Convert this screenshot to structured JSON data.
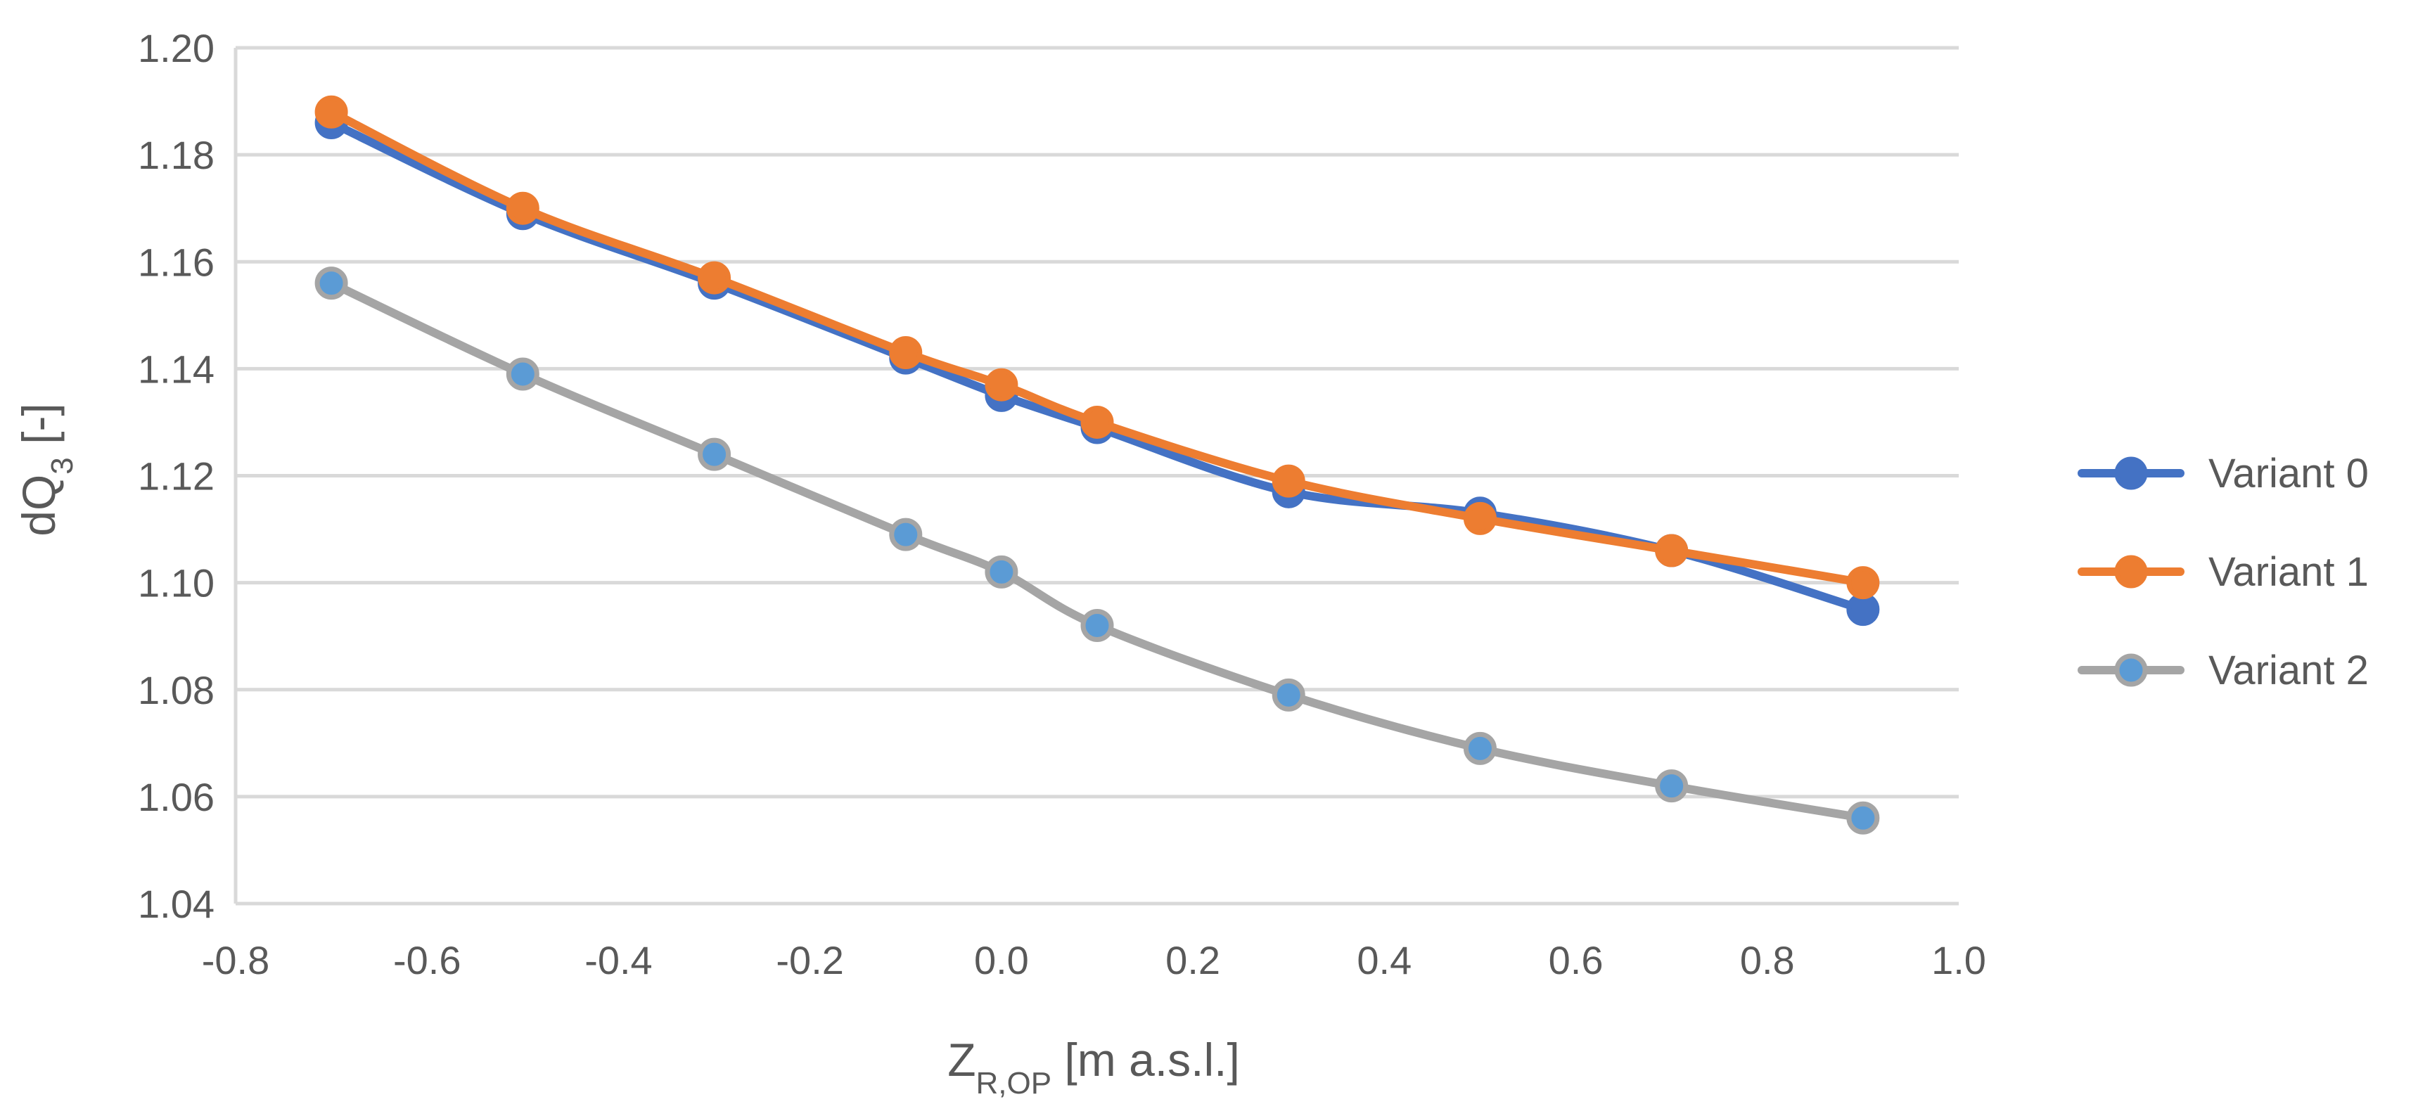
{
  "chart_data": {
    "type": "line",
    "title": "",
    "xlabel": {
      "main": "Z",
      "sub": "R,OP",
      "rest": " [m a.s.l.]"
    },
    "ylabel": {
      "main": "dQ",
      "sub": "3",
      "rest": " [-]"
    },
    "xlim": [
      -0.8,
      1.0
    ],
    "ylim": [
      1.04,
      1.2
    ],
    "x_ticks": [
      "-0.8",
      "-0.6",
      "-0.4",
      "-0.2",
      "0.0",
      "0.2",
      "0.4",
      "0.6",
      "0.8",
      "1.0"
    ],
    "y_ticks": [
      "1.04",
      "1.06",
      "1.08",
      "1.10",
      "1.12",
      "1.14",
      "1.16",
      "1.18",
      "1.20"
    ],
    "grid": "horizontal",
    "legend_position": "right",
    "x": [
      -0.7,
      -0.5,
      -0.3,
      -0.1,
      0.0,
      0.1,
      0.3,
      0.5,
      0.7,
      0.9
    ],
    "series": [
      {
        "name": "Variant 0",
        "color": "#4472C4",
        "marker_fill": "#4472C4",
        "values": [
          1.186,
          1.169,
          1.156,
          1.142,
          1.135,
          1.129,
          1.117,
          1.113,
          1.106,
          1.095
        ]
      },
      {
        "name": "Variant 1",
        "color": "#ED7D31",
        "marker_fill": "#ED7D31",
        "values": [
          1.188,
          1.17,
          1.157,
          1.143,
          1.137,
          1.13,
          1.119,
          1.112,
          1.106,
          1.1
        ]
      },
      {
        "name": "Variant 2",
        "color": "#A5A5A5",
        "marker_fill": "#5B9BD5",
        "values": [
          1.156,
          1.139,
          1.124,
          1.109,
          1.102,
          1.092,
          1.079,
          1.069,
          1.062,
          1.056
        ]
      }
    ]
  }
}
